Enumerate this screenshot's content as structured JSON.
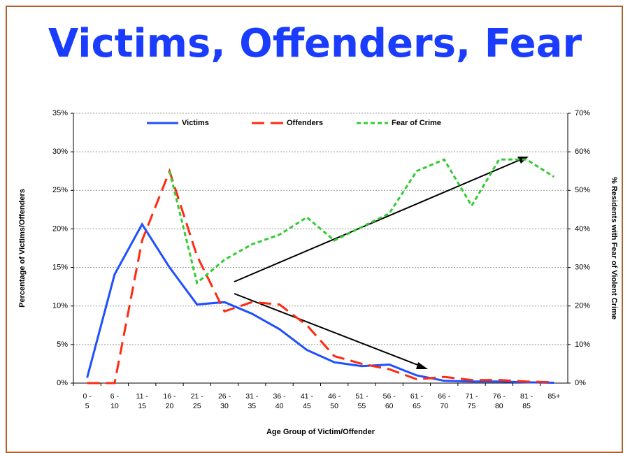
{
  "chart_data": {
    "type": "line",
    "title": "Victims, Offenders, Fear",
    "xlabel": "Age Group of Victim/Offender",
    "ylabel": "Percentage of Victims/Offenders",
    "y2label": "% Residents with Fear of Violent Crime",
    "categories": [
      "0 - 5",
      "6 - 10",
      "11 - 15",
      "16 - 20",
      "21 - 25",
      "26 - 30",
      "31 - 35",
      "36 - 40",
      "41 - 45",
      "46 - 50",
      "51 - 55",
      "56 - 60",
      "61 - 65",
      "66 - 70",
      "71 - 75",
      "76 - 80",
      "81 - 85",
      "85+"
    ],
    "series": [
      {
        "name": "Victims",
        "color": "#1f4fff",
        "dash": "solid",
        "values": [
          0.7,
          14.1,
          20.6,
          15,
          10.2,
          10.5,
          9,
          7,
          4.3,
          2.7,
          2.2,
          2.4,
          1,
          0.3,
          0.2,
          0.2,
          0.1,
          0.05
        ]
      },
      {
        "name": "Offenders",
        "color": "#ff2a10",
        "dash": "long",
        "values": [
          0,
          0,
          18.5,
          27.5,
          16.5,
          9.3,
          10.5,
          10.2,
          7.5,
          3.5,
          2.5,
          1.8,
          0.5,
          0.8,
          0.4,
          0.4,
          0.2,
          0.1
        ]
      },
      {
        "name": "Fear of Crime",
        "color": "#33cc33",
        "dash": "short",
        "axis": "y2",
        "values": [
          null,
          null,
          null,
          55,
          26,
          32,
          36,
          38.5,
          43,
          37,
          40.5,
          44,
          55,
          58,
          46,
          58,
          58,
          53.5
        ]
      }
    ],
    "ylim": [
      0,
      35
    ],
    "yticks": [
      {
        "value": 0,
        "label": "0%"
      },
      {
        "value": 5,
        "label": "5%"
      },
      {
        "value": 10,
        "label": "10%"
      },
      {
        "value": 15,
        "label": "15%"
      },
      {
        "value": 20,
        "label": "20%"
      },
      {
        "value": 25,
        "label": "25%"
      },
      {
        "value": 30,
        "label": "30%"
      },
      {
        "value": 35,
        "label": "35%"
      }
    ],
    "y2lim": [
      0,
      70
    ],
    "y2ticks": [
      {
        "value": 0,
        "label": "0%"
      },
      {
        "value": 10,
        "label": "10%"
      },
      {
        "value": 20,
        "label": "20%"
      },
      {
        "value": 30,
        "label": "30%"
      },
      {
        "value": 40,
        "label": "40%"
      },
      {
        "value": 50,
        "label": "50%"
      },
      {
        "value": 60,
        "label": "60%"
      },
      {
        "value": 70,
        "label": "70%"
      }
    ],
    "grid": true,
    "legend": "top"
  }
}
